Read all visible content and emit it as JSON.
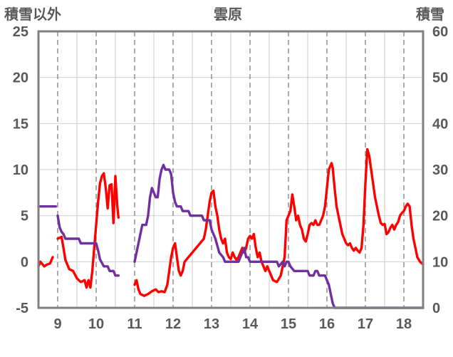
{
  "chart_data": {
    "type": "line",
    "title": "雲原",
    "left_axis_label": "積雪以外",
    "right_axis_label": "積雪",
    "x_ticks": [
      9,
      10,
      11,
      12,
      13,
      14,
      15,
      16,
      17,
      18
    ],
    "x_range": [
      8.5,
      18.5
    ],
    "y_left_range": [
      -5,
      25
    ],
    "y_left_ticks": [
      -5,
      0,
      5,
      10,
      15,
      20,
      25
    ],
    "y_right_range": [
      0,
      60
    ],
    "y_right_ticks": [
      0,
      10,
      20,
      30,
      40,
      50,
      60
    ],
    "grid": "vertical dashed lines at day boundaries",
    "colors": {
      "temperature": "#ff0000",
      "snow_depth": "#7030a0",
      "axis": "#808080",
      "grid": "#808080"
    },
    "series": [
      {
        "axis": "left",
        "color": "#ff0000",
        "segments": [
          [
            [
              8.5,
              -0.5
            ],
            [
              8.55,
              0
            ],
            [
              8.65,
              -0.5
            ],
            [
              8.72,
              -0.3
            ],
            [
              8.8,
              -0.2
            ],
            [
              8.87,
              0.5
            ]
          ],
          [
            [
              9.0,
              2.5
            ],
            [
              9.1,
              2.7
            ],
            [
              9.15,
              1.5
            ],
            [
              9.2,
              0.2
            ],
            [
              9.3,
              -0.8
            ],
            [
              9.4,
              -1.0
            ],
            [
              9.5,
              -1.8
            ],
            [
              9.6,
              -2.2
            ],
            [
              9.7,
              -2.0
            ],
            [
              9.75,
              -2.8
            ],
            [
              9.8,
              -2.0
            ],
            [
              9.85,
              -2.8
            ],
            [
              9.9,
              -1.0
            ],
            [
              9.95,
              1.5
            ],
            [
              10.0,
              4.0
            ],
            [
              10.05,
              6.5
            ],
            [
              10.1,
              8.5
            ],
            [
              10.15,
              9.3
            ],
            [
              10.2,
              9.6
            ],
            [
              10.25,
              8.0
            ],
            [
              10.3,
              5.8
            ],
            [
              10.35,
              8.3
            ],
            [
              10.4,
              8.4
            ],
            [
              10.45,
              4.2
            ],
            [
              10.5,
              9.3
            ],
            [
              10.55,
              6.0
            ],
            [
              10.58,
              4.8
            ]
          ],
          [
            [
              11.0,
              -2.5
            ],
            [
              11.05,
              -2.0
            ],
            [
              11.1,
              -3.0
            ],
            [
              11.15,
              -3.5
            ],
            [
              11.25,
              -3.7
            ],
            [
              11.35,
              -3.5
            ],
            [
              11.45,
              -3.2
            ],
            [
              11.55,
              -3.0
            ],
            [
              11.62,
              -3.3
            ],
            [
              11.7,
              -3.2
            ],
            [
              11.78,
              -3.3
            ],
            [
              11.85,
              -2.5
            ],
            [
              11.9,
              -1.0
            ],
            [
              11.95,
              0.5
            ],
            [
              12.0,
              1.5
            ],
            [
              12.05,
              2.0
            ],
            [
              12.1,
              0.5
            ],
            [
              12.15,
              -1.0
            ],
            [
              12.2,
              -1.5
            ],
            [
              12.25,
              -1.0
            ],
            [
              12.3,
              0
            ],
            [
              12.4,
              0.5
            ],
            [
              12.5,
              1.0
            ],
            [
              12.6,
              1.5
            ],
            [
              12.7,
              2.0
            ],
            [
              12.8,
              2.5
            ],
            [
              12.85,
              3.5
            ],
            [
              12.9,
              5.0
            ],
            [
              12.95,
              6.5
            ],
            [
              13.0,
              7.5
            ],
            [
              13.05,
              7.7
            ],
            [
              13.1,
              6.0
            ],
            [
              13.15,
              5.0
            ],
            [
              13.2,
              3.5
            ],
            [
              13.25,
              2.5
            ],
            [
              13.3,
              2.0
            ],
            [
              13.35,
              2.5
            ],
            [
              13.4,
              1.0
            ],
            [
              13.45,
              0.5
            ],
            [
              13.5,
              0.3
            ],
            [
              13.55,
              1.0
            ],
            [
              13.6,
              0.5
            ],
            [
              13.65,
              0.2
            ],
            [
              13.7,
              0.5
            ],
            [
              13.75,
              1.0
            ],
            [
              13.8,
              1.5
            ],
            [
              13.85,
              1.0
            ],
            [
              13.9,
              1.5
            ],
            [
              13.95,
              2.5
            ],
            [
              14.0,
              2.8
            ],
            [
              14.05,
              2.5
            ],
            [
              14.1,
              3.0
            ],
            [
              14.15,
              1.5
            ],
            [
              14.2,
              0.5
            ],
            [
              14.25,
              1.0
            ],
            [
              14.3,
              0
            ],
            [
              14.35,
              -0.5
            ],
            [
              14.4,
              -1.0
            ],
            [
              14.45,
              -0.5
            ],
            [
              14.5,
              -1.0
            ],
            [
              14.55,
              -1.5
            ],
            [
              14.6,
              -2.0
            ],
            [
              14.7,
              -2.2
            ],
            [
              14.8,
              -1.5
            ],
            [
              14.85,
              -0.5
            ],
            [
              14.9,
              0.5
            ],
            [
              14.95,
              4.5
            ],
            [
              15.0,
              5.0
            ],
            [
              15.05,
              5.5
            ],
            [
              15.1,
              7.3
            ],
            [
              15.15,
              6.0
            ],
            [
              15.2,
              4.5
            ],
            [
              15.25,
              5.0
            ],
            [
              15.3,
              4.0
            ],
            [
              15.35,
              3.5
            ],
            [
              15.4,
              2.5
            ],
            [
              15.45,
              2.2
            ],
            [
              15.5,
              3.0
            ],
            [
              15.55,
              4.0
            ],
            [
              15.6,
              4.2
            ],
            [
              15.65,
              4.0
            ],
            [
              15.7,
              4.5
            ],
            [
              15.75,
              4.0
            ],
            [
              15.8,
              4.0
            ],
            [
              15.85,
              4.5
            ],
            [
              15.9,
              5.0
            ],
            [
              15.95,
              6.0
            ],
            [
              16.0,
              8.0
            ],
            [
              16.05,
              10.0
            ],
            [
              16.1,
              10.5
            ],
            [
              16.12,
              10.7
            ],
            [
              16.15,
              10.2
            ],
            [
              16.2,
              8.0
            ],
            [
              16.25,
              6.0
            ],
            [
              16.3,
              5.0
            ],
            [
              16.35,
              4.0
            ],
            [
              16.4,
              3.0
            ],
            [
              16.45,
              2.5
            ],
            [
              16.5,
              2.0
            ],
            [
              16.55,
              1.8
            ],
            [
              16.6,
              2.0
            ],
            [
              16.65,
              1.5
            ],
            [
              16.7,
              1.2
            ],
            [
              16.75,
              1.5
            ],
            [
              16.8,
              1.2
            ],
            [
              16.85,
              1.0
            ],
            [
              16.9,
              1.5
            ],
            [
              16.95,
              4.0
            ],
            [
              17.0,
              8.5
            ],
            [
              17.05,
              12.2
            ],
            [
              17.1,
              11.5
            ],
            [
              17.15,
              10.0
            ],
            [
              17.2,
              8.5
            ],
            [
              17.25,
              7.0
            ],
            [
              17.3,
              6.0
            ],
            [
              17.35,
              5.0
            ],
            [
              17.4,
              4.2
            ],
            [
              17.45,
              4.0
            ],
            [
              17.5,
              4.1
            ],
            [
              17.55,
              3.0
            ],
            [
              17.6,
              3.2
            ],
            [
              17.65,
              3.7
            ],
            [
              17.7,
              4.0
            ],
            [
              17.75,
              3.5
            ],
            [
              17.8,
              4.0
            ],
            [
              17.85,
              4.3
            ],
            [
              17.9,
              5.0
            ],
            [
              17.95,
              5.3
            ],
            [
              18.0,
              5.5
            ],
            [
              18.05,
              6.0
            ],
            [
              18.1,
              6.3
            ],
            [
              18.15,
              6.0
            ],
            [
              18.2,
              4.0
            ],
            [
              18.25,
              2.5
            ],
            [
              18.3,
              1.5
            ],
            [
              18.35,
              0.5
            ],
            [
              18.42,
              0
            ],
            [
              18.5,
              -0.3
            ]
          ]
        ]
      },
      {
        "axis": "right",
        "color": "#7030a0",
        "segments": [
          [
            [
              8.5,
              22
            ],
            [
              8.95,
              22
            ]
          ],
          [
            [
              9.0,
              20
            ],
            [
              9.05,
              17.5
            ],
            [
              9.1,
              16.5
            ],
            [
              9.15,
              16
            ],
            [
              9.2,
              15
            ],
            [
              9.25,
              15
            ],
            [
              9.55,
              15
            ],
            [
              9.6,
              14
            ],
            [
              10.0,
              14
            ],
            [
              10.05,
              12.5
            ],
            [
              10.1,
              10.5
            ],
            [
              10.2,
              9
            ],
            [
              10.3,
              9
            ],
            [
              10.35,
              8
            ],
            [
              10.45,
              8
            ],
            [
              10.5,
              7
            ],
            [
              10.58,
              7
            ]
          ],
          [
            [
              11.0,
              10
            ],
            [
              11.05,
              12
            ],
            [
              11.1,
              14
            ],
            [
              11.15,
              16
            ],
            [
              11.2,
              18
            ],
            [
              11.3,
              18
            ],
            [
              11.35,
              20
            ],
            [
              11.4,
              24
            ],
            [
              11.45,
              26
            ],
            [
              11.5,
              25
            ],
            [
              11.55,
              24
            ],
            [
              11.6,
              24
            ],
            [
              11.65,
              28
            ],
            [
              11.7,
              30
            ],
            [
              11.75,
              31
            ],
            [
              11.8,
              30
            ],
            [
              11.9,
              30
            ],
            [
              11.95,
              29
            ],
            [
              12.0,
              25
            ],
            [
              12.05,
              23
            ],
            [
              12.1,
              22
            ],
            [
              12.2,
              22
            ],
            [
              12.25,
              21
            ],
            [
              12.4,
              21
            ],
            [
              12.45,
              20
            ],
            [
              12.75,
              20
            ],
            [
              12.8,
              19
            ],
            [
              12.95,
              19
            ],
            [
              13.0,
              17
            ],
            [
              13.1,
              15
            ],
            [
              13.2,
              12
            ],
            [
              13.3,
              11
            ],
            [
              13.35,
              10
            ],
            [
              13.7,
              10
            ],
            [
              13.75,
              11
            ],
            [
              13.8,
              12
            ],
            [
              13.85,
              13
            ],
            [
              13.9,
              11
            ],
            [
              13.95,
              11
            ],
            [
              14.0,
              10
            ],
            [
              14.7,
              10
            ],
            [
              14.75,
              9
            ],
            [
              14.85,
              10
            ],
            [
              14.9,
              9
            ],
            [
              14.95,
              10
            ],
            [
              15.0,
              10
            ],
            [
              15.05,
              9
            ],
            [
              15.15,
              8
            ],
            [
              15.5,
              8
            ],
            [
              15.55,
              7
            ],
            [
              15.65,
              7
            ],
            [
              15.7,
              8
            ],
            [
              15.75,
              8
            ],
            [
              15.8,
              7
            ],
            [
              15.95,
              7
            ],
            [
              16.0,
              6
            ],
            [
              16.05,
              5
            ],
            [
              16.1,
              3
            ],
            [
              16.15,
              1
            ],
            [
              16.2,
              0
            ],
            [
              18.5,
              0
            ]
          ]
        ]
      }
    ]
  }
}
